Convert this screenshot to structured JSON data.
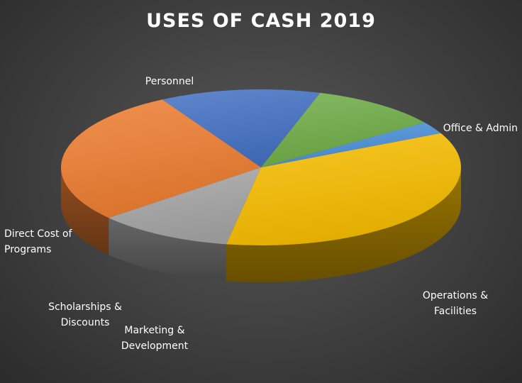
{
  "chart_data": {
    "type": "pie",
    "title": "USES OF CASH 2019",
    "slices": [
      {
        "label": "Operations &\nFacilities",
        "value": 35,
        "color": "#f7bd00"
      },
      {
        "label": "Marketing &\nDevelopment",
        "value": 2.5,
        "color": "#4a90d9"
      },
      {
        "label": "Scholarships &\nDiscounts",
        "value": 10.5,
        "color": "#70ad47"
      },
      {
        "label": "Direct Cost of\nPrograms",
        "value": 13,
        "color": "#4472c4"
      },
      {
        "label": "Personnel",
        "value": 28,
        "color": "#ed7d31"
      },
      {
        "label": "Office & Admin",
        "value": 11,
        "color": "#a5a5a5"
      }
    ],
    "legend": "none"
  }
}
